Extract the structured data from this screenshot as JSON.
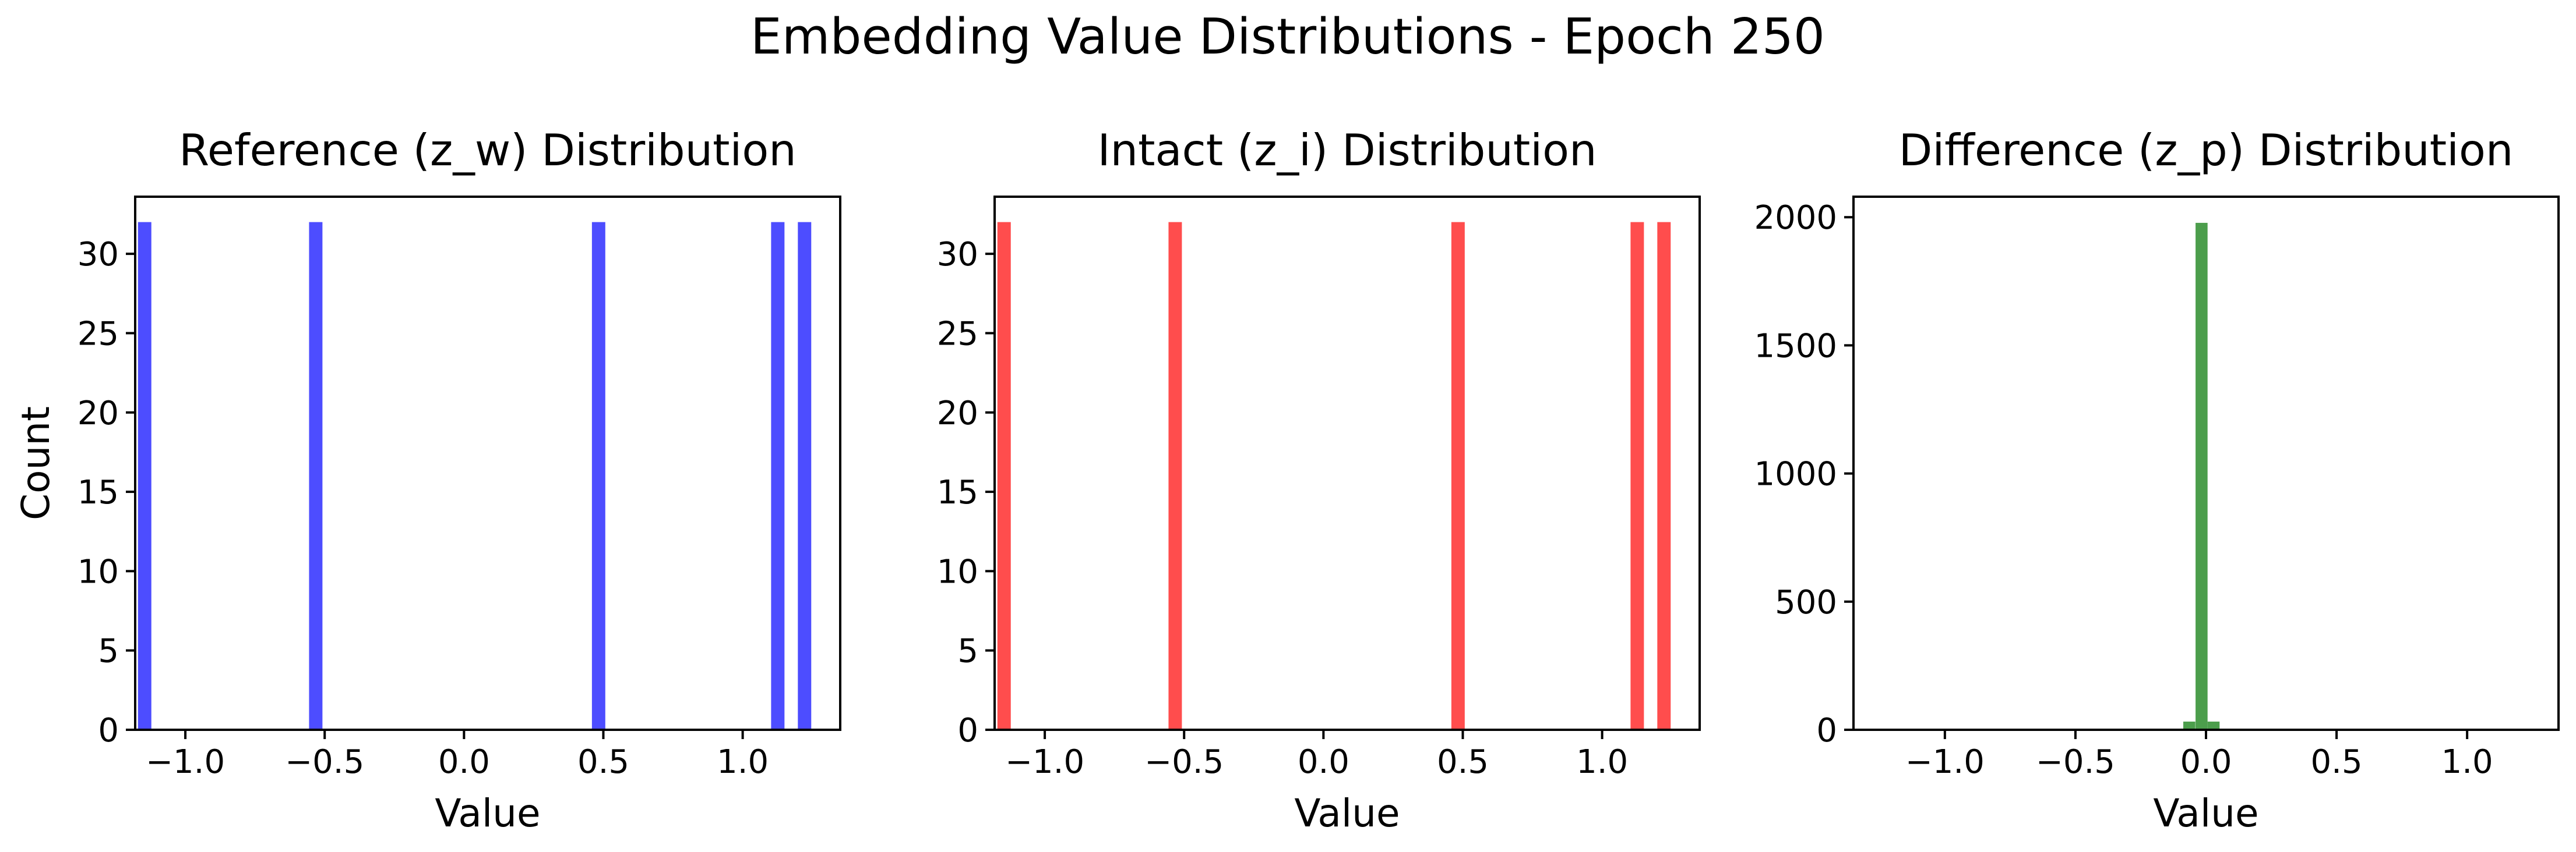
{
  "figure": {
    "suptitle": "Embedding Value Distributions - Epoch 250"
  },
  "chart_data": [
    {
      "type": "bar",
      "title": "Reference (z_w) Distribution",
      "xlabel": "Value",
      "ylabel": "Count",
      "color": "#4d4dff",
      "xlim": [
        -1.18,
        1.35
      ],
      "ylim": [
        0,
        33.6
      ],
      "xticks": [
        -1.0,
        -0.5,
        0.0,
        0.5,
        1.0
      ],
      "xtick_labels": [
        "−1.0",
        "−0.5",
        "0.0",
        "0.5",
        "1.0"
      ],
      "yticks": [
        0,
        5,
        10,
        15,
        20,
        25,
        30
      ],
      "ytick_labels": [
        "0",
        "5",
        "10",
        "15",
        "20",
        "25",
        "30"
      ],
      "bin_width": 0.048,
      "bins": [
        {
          "x0": -1.17,
          "value": 32
        },
        {
          "x0": -0.556,
          "value": 32
        },
        {
          "x0": 0.459,
          "value": 32
        },
        {
          "x0": 1.102,
          "value": 32
        },
        {
          "x0": 1.198,
          "value": 32
        }
      ]
    },
    {
      "type": "bar",
      "title": "Intact (z_i) Distribution",
      "xlabel": "Value",
      "ylabel": "",
      "color": "#ff4d4d",
      "xlim": [
        -1.18,
        1.35
      ],
      "ylim": [
        0,
        33.6
      ],
      "xticks": [
        -1.0,
        -0.5,
        0.0,
        0.5,
        1.0
      ],
      "xtick_labels": [
        "−1.0",
        "−0.5",
        "0.0",
        "0.5",
        "1.0"
      ],
      "yticks": [
        0,
        5,
        10,
        15,
        20,
        25,
        30
      ],
      "ytick_labels": [
        "0",
        "5",
        "10",
        "15",
        "20",
        "25",
        "30"
      ],
      "bin_width": 0.048,
      "bins": [
        {
          "x0": -1.17,
          "value": 32
        },
        {
          "x0": -0.556,
          "value": 32
        },
        {
          "x0": 0.459,
          "value": 32
        },
        {
          "x0": 1.102,
          "value": 32
        },
        {
          "x0": 1.198,
          "value": 32
        }
      ]
    },
    {
      "type": "bar",
      "title": "Difference (z_p) Distribution",
      "xlabel": "Value",
      "ylabel": "",
      "color": "#4c9e4c",
      "xlim": [
        -1.35,
        1.35
      ],
      "ylim": [
        0,
        2080
      ],
      "xticks": [
        -1.0,
        -0.5,
        0.0,
        0.5,
        1.0
      ],
      "xtick_labels": [
        "−1.0",
        "−0.5",
        "0.0",
        "0.5",
        "1.0"
      ],
      "yticks": [
        0,
        500,
        1000,
        1500,
        2000
      ],
      "ytick_labels": [
        "0",
        "500",
        "1000",
        "1500",
        "2000"
      ],
      "bin_width": 0.046,
      "bins": [
        {
          "x0": -0.087,
          "value": 32
        },
        {
          "x0": -0.04,
          "value": 1978
        },
        {
          "x0": 0.006,
          "value": 32
        }
      ]
    }
  ]
}
